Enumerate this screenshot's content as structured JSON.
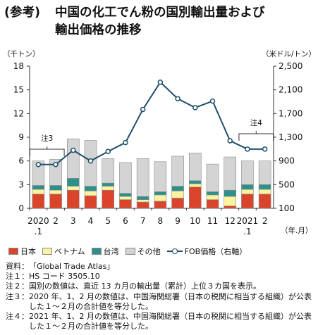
{
  "title": {
    "tag": "(参考)",
    "line1": "中国の化工でん粉の国別輸出量および",
    "line2": "輸出価格の推移"
  },
  "chart_data": {
    "type": "bar",
    "left_unit": "（千トン）",
    "right_unit": "（米ドル/トン）",
    "x_unit": "（年.月）",
    "categories": [
      "2020.1",
      "2",
      "3",
      "4",
      "5",
      "6",
      "7",
      "8",
      "9",
      "10",
      "11",
      "12",
      "2021.1",
      "2"
    ],
    "category_labels": [
      [
        "2020",
        ".1"
      ],
      [
        "2"
      ],
      [
        "3"
      ],
      [
        "4"
      ],
      [
        "5"
      ],
      [
        "6"
      ],
      [
        "7"
      ],
      [
        "8"
      ],
      [
        "9"
      ],
      [
        "10"
      ],
      [
        "11"
      ],
      [
        "12"
      ],
      [
        "2021",
        ".1"
      ],
      [
        "2"
      ]
    ],
    "left_axis": {
      "min": 0,
      "max": 18,
      "ticks": [
        0,
        3,
        6,
        9,
        12,
        15,
        18
      ]
    },
    "right_axis": {
      "min": 100,
      "max": 2500,
      "ticks": [
        "100",
        "500",
        "900",
        "1,300",
        "1,700",
        "2,100",
        "2,500"
      ]
    },
    "series": [
      {
        "name": "日本",
        "type": "bar",
        "color": "#d9442b",
        "values": [
          1.8,
          1.8,
          2.3,
          1.6,
          2.3,
          1.1,
          0.8,
          0.9,
          1.3,
          2.7,
          1.1,
          0.3,
          1.8,
          1.8
        ]
      },
      {
        "name": "ベトナム",
        "type": "bar",
        "color": "#fbf3a1",
        "values": [
          0.6,
          0.5,
          0.5,
          0.6,
          0.5,
          0.4,
          0.3,
          0.8,
          0.9,
          0.4,
          0.6,
          1.2,
          0.6,
          0.6
        ]
      },
      {
        "name": "台湾",
        "type": "bar",
        "color": "#2f8f8c",
        "values": [
          0.5,
          0.6,
          1.0,
          0.6,
          0.4,
          0.4,
          0.4,
          0.4,
          0.6,
          0.4,
          0.4,
          0.8,
          0.6,
          0.6
        ]
      },
      {
        "name": "その他",
        "type": "bar",
        "color": "#d4d4d4",
        "values": [
          3.1,
          3.3,
          5.0,
          5.8,
          3.1,
          3.9,
          4.8,
          3.8,
          3.8,
          3.5,
          3.5,
          4.2,
          3.0,
          3.0
        ]
      },
      {
        "name": "FOB価格（右軸）",
        "type": "line",
        "color": "#1f4e6b",
        "values": [
          840,
          840,
          1080,
          900,
          1060,
          1210,
          1770,
          2230,
          1950,
          1800,
          1910,
          1240,
          1100,
          1100
        ]
      }
    ],
    "annotations": [
      {
        "text": "注3",
        "from": 0,
        "to": 1
      },
      {
        "text": "注4",
        "from": 12,
        "to": 13
      }
    ],
    "grid": false,
    "legend_position": "bottom"
  },
  "notes": [
    {
      "label": "資料：",
      "text": "「Global Trade Atlas」"
    },
    {
      "label": "注１：",
      "text": "HS コード 3505.10"
    },
    {
      "label": "注２：",
      "text": "国別の数値は、直近 13 カ月の輸出量（累計）上位３カ国を表示。"
    },
    {
      "label": "注３：",
      "text": "2020 年、1、2 月の数値は、中国海関総署（日本の税関に相当する組織）が公表した１～２月の合計値を等分した。"
    },
    {
      "label": "注４：",
      "text": "2021 年、1、2 月の数値は、中国海関総署（日本の税関に相当する組織）が公表した１～２月の合計値を等分した。"
    }
  ]
}
